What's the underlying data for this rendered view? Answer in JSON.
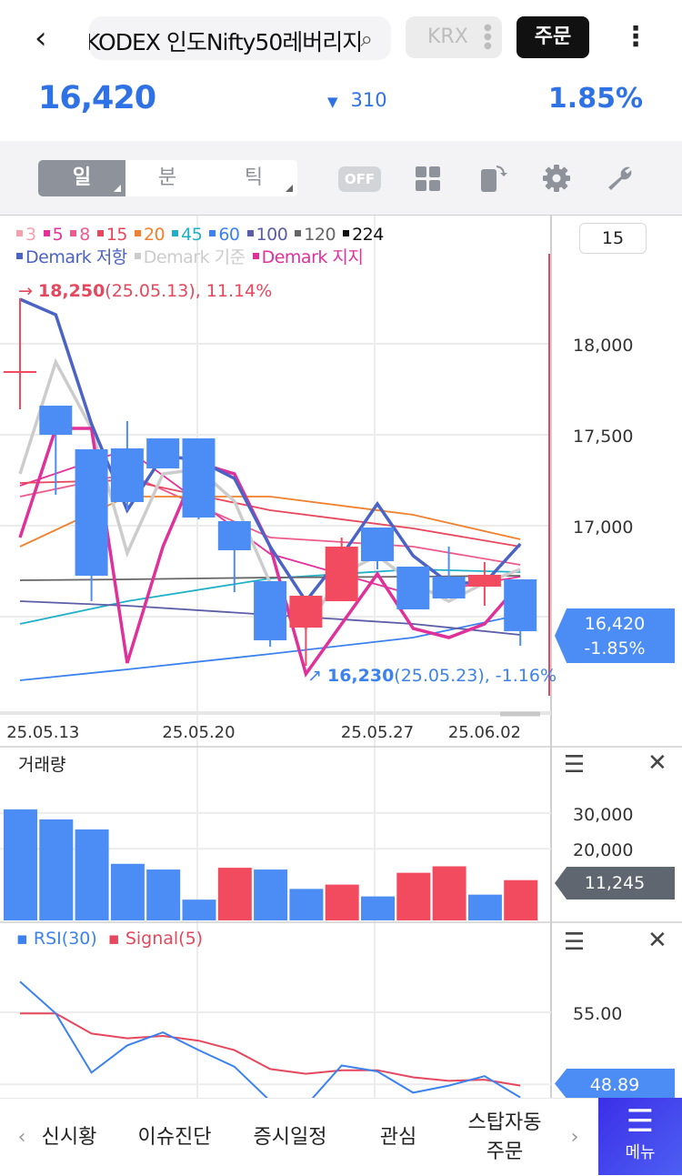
{
  "header": {
    "back_icon": "chevron-left-icon",
    "search_text": "KODEX 인도Nifty50레버리지",
    "search_icon": "search-icon",
    "exchange": "KRX",
    "order_label": "주문",
    "more_icon": "kebab-icon"
  },
  "quote": {
    "price": "16,420",
    "change_dir": "▼",
    "change": "310",
    "change_pct": "1.85%",
    "color": "#2f72e6"
  },
  "toolbar": {
    "segments": [
      "일",
      "분",
      "틱"
    ],
    "active": "일",
    "toggle": "OFF",
    "icons": [
      "grid-icon",
      "rotate-icon",
      "gear-icon",
      "wrench-icon"
    ]
  },
  "chart": {
    "legend_ma": [
      {
        "label": "3",
        "color": "#f4a0ae"
      },
      {
        "label": "5",
        "color": "#e6309a"
      },
      {
        "label": "8",
        "color": "#ef5a8a"
      },
      {
        "label": "15",
        "color": "#e8475c"
      },
      {
        "label": "20",
        "color": "#f0812e"
      },
      {
        "label": "45",
        "color": "#1fb0c8"
      },
      {
        "label": "60",
        "color": "#3b82f0"
      },
      {
        "label": "100",
        "color": "#5b5ea6"
      },
      {
        "label": "120",
        "color": "#666666"
      },
      {
        "label": "224",
        "color": "#111111"
      }
    ],
    "legend_demark": [
      {
        "label": "Demark 저항",
        "color": "#4a63c4"
      },
      {
        "label": "Demark 기준",
        "color": "#cccccc"
      },
      {
        "label": "Demark 지지",
        "color": "#e0309a"
      }
    ],
    "period": "15",
    "high_ann": {
      "value": "18,250",
      "rest": "(25.05.13), 11.14%"
    },
    "low_ann": {
      "value": "16,230",
      "rest": "(25.05.23), -1.16%"
    },
    "current_tag": {
      "price": "16,420",
      "pct": "-1.85%"
    }
  },
  "chart_data": [
    {
      "type": "candlestick",
      "ylim": [
        15970,
        18700
      ],
      "y_ticks": [
        "18,000",
        "17,500",
        "17,000"
      ],
      "y_tick_values": [
        18000,
        17500,
        17000
      ],
      "x_labels": [
        {
          "index": 1,
          "label": "25.05.13"
        },
        {
          "index": 5,
          "label": "25.05.20"
        },
        {
          "index": 10,
          "label": "25.05.27"
        },
        {
          "index": 13,
          "label": "25.06.02"
        }
      ],
      "ohlc": [
        [
          17845,
          18250,
          17640,
          17845
        ],
        [
          17660,
          17660,
          17170,
          17500
        ],
        [
          17420,
          17420,
          16585,
          16725
        ],
        [
          17425,
          17575,
          17085,
          17130
        ],
        [
          17480,
          17480,
          17315,
          17315
        ],
        [
          17480,
          17480,
          17035,
          17045
        ],
        [
          17025,
          17025,
          16635,
          16865
        ],
        [
          16695,
          16695,
          16335,
          16370
        ],
        [
          16440,
          16615,
          16230,
          16615
        ],
        [
          16585,
          16935,
          16585,
          16885
        ],
        [
          16990,
          16990,
          16760,
          16805
        ],
        [
          16775,
          16775,
          16540,
          16540
        ],
        [
          16720,
          16885,
          16600,
          16600
        ],
        [
          16665,
          16800,
          16560,
          16730
        ],
        [
          16705,
          16705,
          16340,
          16420
        ]
      ],
      "demark_resistance": [
        18245,
        18160,
        17560,
        17085,
        17385,
        17360,
        17260,
        16885,
        16585,
        16835,
        17120,
        16835,
        16685,
        16685,
        16900
      ],
      "demark_base": [
        17285,
        17900,
        17535,
        16850,
        17285,
        17310,
        17135,
        16685,
        16435,
        16735,
        16835,
        16685,
        16585,
        16685,
        16760
      ],
      "demark_support": [
        16935,
        17535,
        17535,
        16245,
        16885,
        17345,
        17285,
        16885,
        16185,
        16460,
        16735,
        16435,
        16385,
        16460,
        16685
      ],
      "ma": [
        {
          "label": "5",
          "idx": [
            0,
            3,
            7,
            11,
            14
          ],
          "values": [
            17220,
            17420,
            16845,
            16620,
            16720
          ]
        },
        {
          "label": "8",
          "idx": [
            0,
            3,
            7,
            11,
            14
          ],
          "values": [
            17160,
            17285,
            16935,
            16885,
            16785
          ]
        },
        {
          "label": "15",
          "idx": [
            0,
            3,
            7,
            11,
            14
          ],
          "values": [
            17235,
            17250,
            17085,
            16985,
            16885
          ]
        },
        {
          "label": "20",
          "idx": [
            0,
            3,
            7,
            11,
            14
          ],
          "values": [
            16885,
            17160,
            17160,
            17060,
            16925
          ]
        },
        {
          "label": "45",
          "idx": [
            0,
            3,
            7,
            11,
            14
          ],
          "values": [
            16460,
            16585,
            16710,
            16760,
            16745
          ]
        },
        {
          "label": "60",
          "idx": [
            0,
            3,
            7,
            11,
            14
          ],
          "values": [
            16150,
            16210,
            16295,
            16385,
            16510
          ]
        },
        {
          "label": "100",
          "idx": [
            0,
            3,
            7,
            11,
            14
          ],
          "values": [
            16585,
            16560,
            16510,
            16460,
            16400
          ]
        },
        {
          "label": "120",
          "idx": [
            0,
            3,
            7,
            11,
            14
          ],
          "values": [
            16700,
            16705,
            16715,
            16720,
            16725
          ]
        }
      ]
    },
    {
      "type": "bar",
      "title": "거래량",
      "ylim": [
        0,
        33000
      ],
      "y_ticks": [
        "30,000",
        "20,000"
      ],
      "y_tick_values": [
        30000,
        20000
      ],
      "current": "11,245",
      "values": [
        31000,
        28200,
        25400,
        15800,
        14200,
        5800,
        14700,
        14200,
        8800,
        10000,
        6700,
        13300,
        15100,
        7200,
        11245
      ],
      "colors": [
        "b",
        "b",
        "b",
        "b",
        "b",
        "b",
        "r",
        "b",
        "b",
        "r",
        "b",
        "r",
        "r",
        "b",
        "r"
      ]
    },
    {
      "type": "line",
      "ylim": [
        47.2,
        59.5
      ],
      "y_ticks": [
        "55.00"
      ],
      "y_tick_values": [
        55
      ],
      "current": "48.89",
      "series": [
        {
          "name": "RSI(30)",
          "color": "#3b82f0",
          "values": [
            57.6,
            54.9,
            49.9,
            52.2,
            53.3,
            51.8,
            50.4,
            47.5,
            47.1,
            50.5,
            50.0,
            48.2,
            48.8,
            49.6,
            47.8
          ]
        },
        {
          "name": "Signal(5)",
          "color": "#e5475c",
          "values": [
            54.9,
            54.9,
            53.2,
            52.8,
            53.0,
            52.6,
            51.8,
            50.2,
            49.8,
            50.1,
            50.1,
            49.5,
            49.2,
            49.3,
            48.8
          ]
        }
      ]
    }
  ],
  "colors": {
    "up": "#f24a5e",
    "down": "#4b8cf5"
  },
  "nav": {
    "items": [
      "신시황",
      "이슈진단",
      "증시일정",
      "관심",
      "스탑자동\n주문"
    ],
    "menu": "메뉴"
  }
}
